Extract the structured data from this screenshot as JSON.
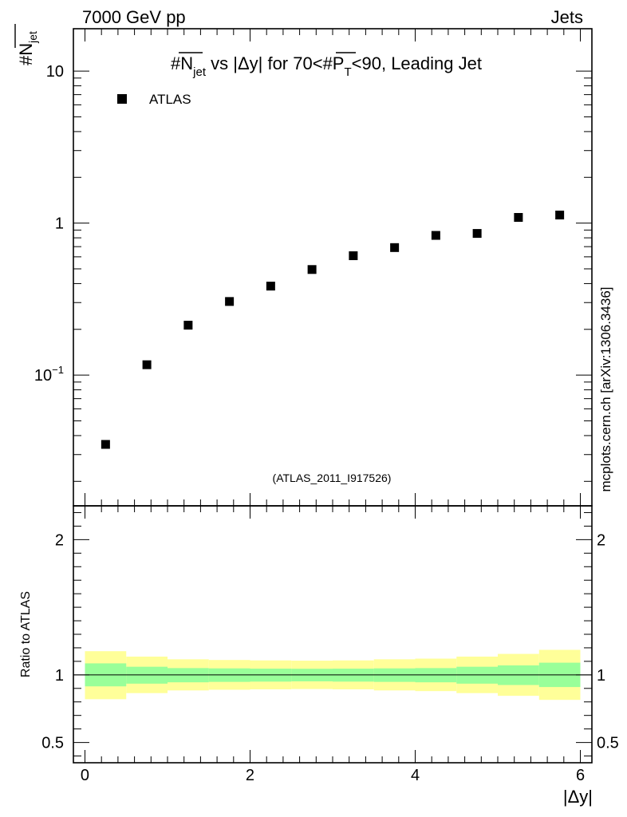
{
  "header": {
    "left": "7000 GeV pp",
    "right": "Jets",
    "side_label": "mcplots.cern.ch [arXiv:1306.3436]"
  },
  "chart_data": {
    "type": "scatter",
    "title": {
      "part1": "#N",
      "part1_sub": "jet",
      "part2": " vs |Δy| for 70<#P",
      "part2_sub": "T",
      "part3": "<90, Leading Jet"
    },
    "ylabel": {
      "main": "#N",
      "sub": "jet"
    },
    "xlabel": "|Δy|",
    "watermark": "(ATLAS_2011_I917526)",
    "legend": {
      "label": "ATLAS",
      "position": "top-left"
    },
    "yscale": "log",
    "ylim": [
      0.0138,
      19.0
    ],
    "xlim": [
      -0.14,
      6.14
    ],
    "y_ticks": [
      {
        "value": 10,
        "label": "10"
      },
      {
        "value": 1,
        "label": "1"
      },
      {
        "value": 0.1,
        "label": "10",
        "sup": "−1"
      }
    ],
    "x_ticks": [
      {
        "value": 0,
        "label": "0"
      },
      {
        "value": 2,
        "label": "2"
      },
      {
        "value": 4,
        "label": "4"
      },
      {
        "value": 6,
        "label": "6"
      }
    ],
    "series": [
      {
        "name": "ATLAS",
        "x": [
          0.25,
          0.75,
          1.25,
          1.75,
          2.25,
          2.75,
          3.25,
          3.75,
          4.25,
          4.75,
          5.25,
          5.75
        ],
        "values": [
          0.035,
          0.117,
          0.213,
          0.305,
          0.385,
          0.495,
          0.61,
          0.69,
          0.83,
          0.855,
          1.09,
          1.13
        ]
      }
    ],
    "ratio": {
      "ylabel": "Ratio to ATLAS",
      "ylim": [
        0.35,
        2.25
      ],
      "y_ticks": [
        {
          "value": 0.5,
          "label": "0.5"
        },
        {
          "value": 1,
          "label": "1"
        },
        {
          "value": 2,
          "label": "2"
        }
      ],
      "bins": [
        {
          "lo": 0.0,
          "hi": 0.5,
          "stat_lo": 0.915,
          "stat_hi": 1.085,
          "tot_lo": 0.82,
          "tot_hi": 1.175
        },
        {
          "lo": 0.5,
          "hi": 1.0,
          "stat_lo": 0.935,
          "stat_hi": 1.06,
          "tot_lo": 0.865,
          "tot_hi": 1.135
        },
        {
          "lo": 1.0,
          "hi": 1.5,
          "stat_lo": 0.945,
          "stat_hi": 1.05,
          "tot_lo": 0.885,
          "tot_hi": 1.115
        },
        {
          "lo": 1.5,
          "hi": 2.0,
          "stat_lo": 0.948,
          "stat_hi": 1.048,
          "tot_lo": 0.89,
          "tot_hi": 1.11
        },
        {
          "lo": 2.0,
          "hi": 2.5,
          "stat_lo": 0.95,
          "stat_hi": 1.046,
          "tot_lo": 0.893,
          "tot_hi": 1.107
        },
        {
          "lo": 2.5,
          "hi": 3.0,
          "stat_lo": 0.952,
          "stat_hi": 1.045,
          "tot_lo": 0.895,
          "tot_hi": 1.105
        },
        {
          "lo": 3.0,
          "hi": 3.5,
          "stat_lo": 0.95,
          "stat_hi": 1.046,
          "tot_lo": 0.893,
          "tot_hi": 1.107
        },
        {
          "lo": 3.5,
          "hi": 4.0,
          "stat_lo": 0.948,
          "stat_hi": 1.048,
          "tot_lo": 0.885,
          "tot_hi": 1.115
        },
        {
          "lo": 4.0,
          "hi": 4.5,
          "stat_lo": 0.945,
          "stat_hi": 1.05,
          "tot_lo": 0.88,
          "tot_hi": 1.12
        },
        {
          "lo": 4.5,
          "hi": 5.0,
          "stat_lo": 0.935,
          "stat_hi": 1.06,
          "tot_lo": 0.865,
          "tot_hi": 1.135
        },
        {
          "lo": 5.0,
          "hi": 5.5,
          "stat_lo": 0.925,
          "stat_hi": 1.07,
          "tot_lo": 0.845,
          "tot_hi": 1.155
        },
        {
          "lo": 5.5,
          "hi": 6.0,
          "stat_lo": 0.91,
          "stat_hi": 1.09,
          "tot_lo": 0.815,
          "tot_hi": 1.185
        }
      ]
    },
    "colors": {
      "marker": "#000000",
      "stat_band": "#99ff99",
      "total_band": "#ffff99",
      "watermark": "#888888",
      "side_label": "#666666"
    }
  }
}
